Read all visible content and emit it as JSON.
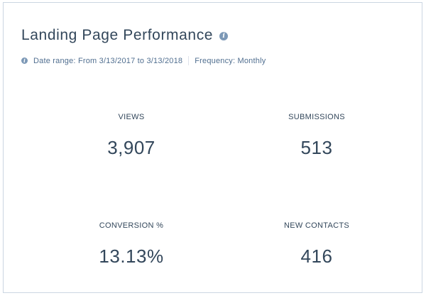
{
  "card": {
    "title": "Landing Page Performance",
    "title_info_icon": "info-icon"
  },
  "meta": {
    "icon": "info-icon",
    "date_range": "Date range: From 3/13/2017 to 3/13/2018",
    "frequency": "Frequency: Monthly"
  },
  "metrics": [
    {
      "label": "VIEWS",
      "value": "3,907"
    },
    {
      "label": "SUBMISSIONS",
      "value": "513"
    },
    {
      "label": "CONVERSION %",
      "value": "13.13%"
    },
    {
      "label": "NEW CONTACTS",
      "value": "416"
    }
  ],
  "colors": {
    "text": "#33475b",
    "muted_text": "#516f90",
    "icon": "#7c98b6",
    "border": "#cbd6e2"
  }
}
